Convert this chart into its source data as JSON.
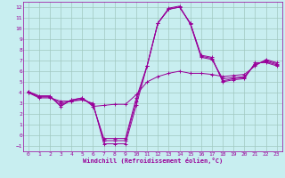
{
  "xlabel": "Windchill (Refroidissement éolien,°C)",
  "xlim": [
    -0.5,
    23.5
  ],
  "ylim": [
    -1.5,
    12.5
  ],
  "xticks": [
    0,
    1,
    2,
    3,
    4,
    5,
    6,
    7,
    8,
    9,
    10,
    11,
    12,
    13,
    14,
    15,
    16,
    17,
    18,
    19,
    20,
    21,
    22,
    23
  ],
  "yticks": [
    -1,
    0,
    1,
    2,
    3,
    4,
    5,
    6,
    7,
    8,
    9,
    10,
    11,
    12
  ],
  "bg_color": "#c8eef0",
  "grid_color": "#a0c8c0",
  "line_color": "#990099",
  "curves": [
    [
      4.0,
      3.5,
      3.5,
      3.2,
      3.2,
      3.3,
      3.0,
      -0.8,
      -0.8,
      -0.8,
      2.8,
      6.5,
      10.5,
      11.8,
      12.0,
      10.5,
      7.5,
      7.3,
      5.0,
      5.2,
      5.3,
      6.8,
      6.8,
      6.5
    ],
    [
      4.0,
      3.6,
      3.6,
      3.0,
      3.2,
      3.4,
      2.9,
      -0.5,
      -0.5,
      -0.5,
      3.2,
      6.5,
      10.5,
      11.8,
      12.0,
      10.5,
      7.4,
      7.2,
      5.1,
      5.3,
      5.4,
      6.7,
      6.9,
      6.6
    ],
    [
      4.1,
      3.6,
      3.6,
      2.8,
      3.3,
      3.5,
      2.8,
      -0.3,
      -0.3,
      -0.3,
      3.5,
      6.5,
      10.5,
      11.9,
      12.1,
      10.4,
      7.3,
      7.1,
      5.3,
      5.4,
      5.5,
      6.6,
      7.0,
      6.7
    ],
    [
      4.1,
      3.7,
      3.7,
      2.7,
      3.3,
      3.5,
      2.7,
      2.8,
      2.9,
      2.9,
      3.8,
      5.0,
      5.5,
      5.8,
      6.0,
      5.8,
      5.8,
      5.7,
      5.5,
      5.6,
      5.7,
      6.5,
      7.1,
      6.8
    ]
  ]
}
